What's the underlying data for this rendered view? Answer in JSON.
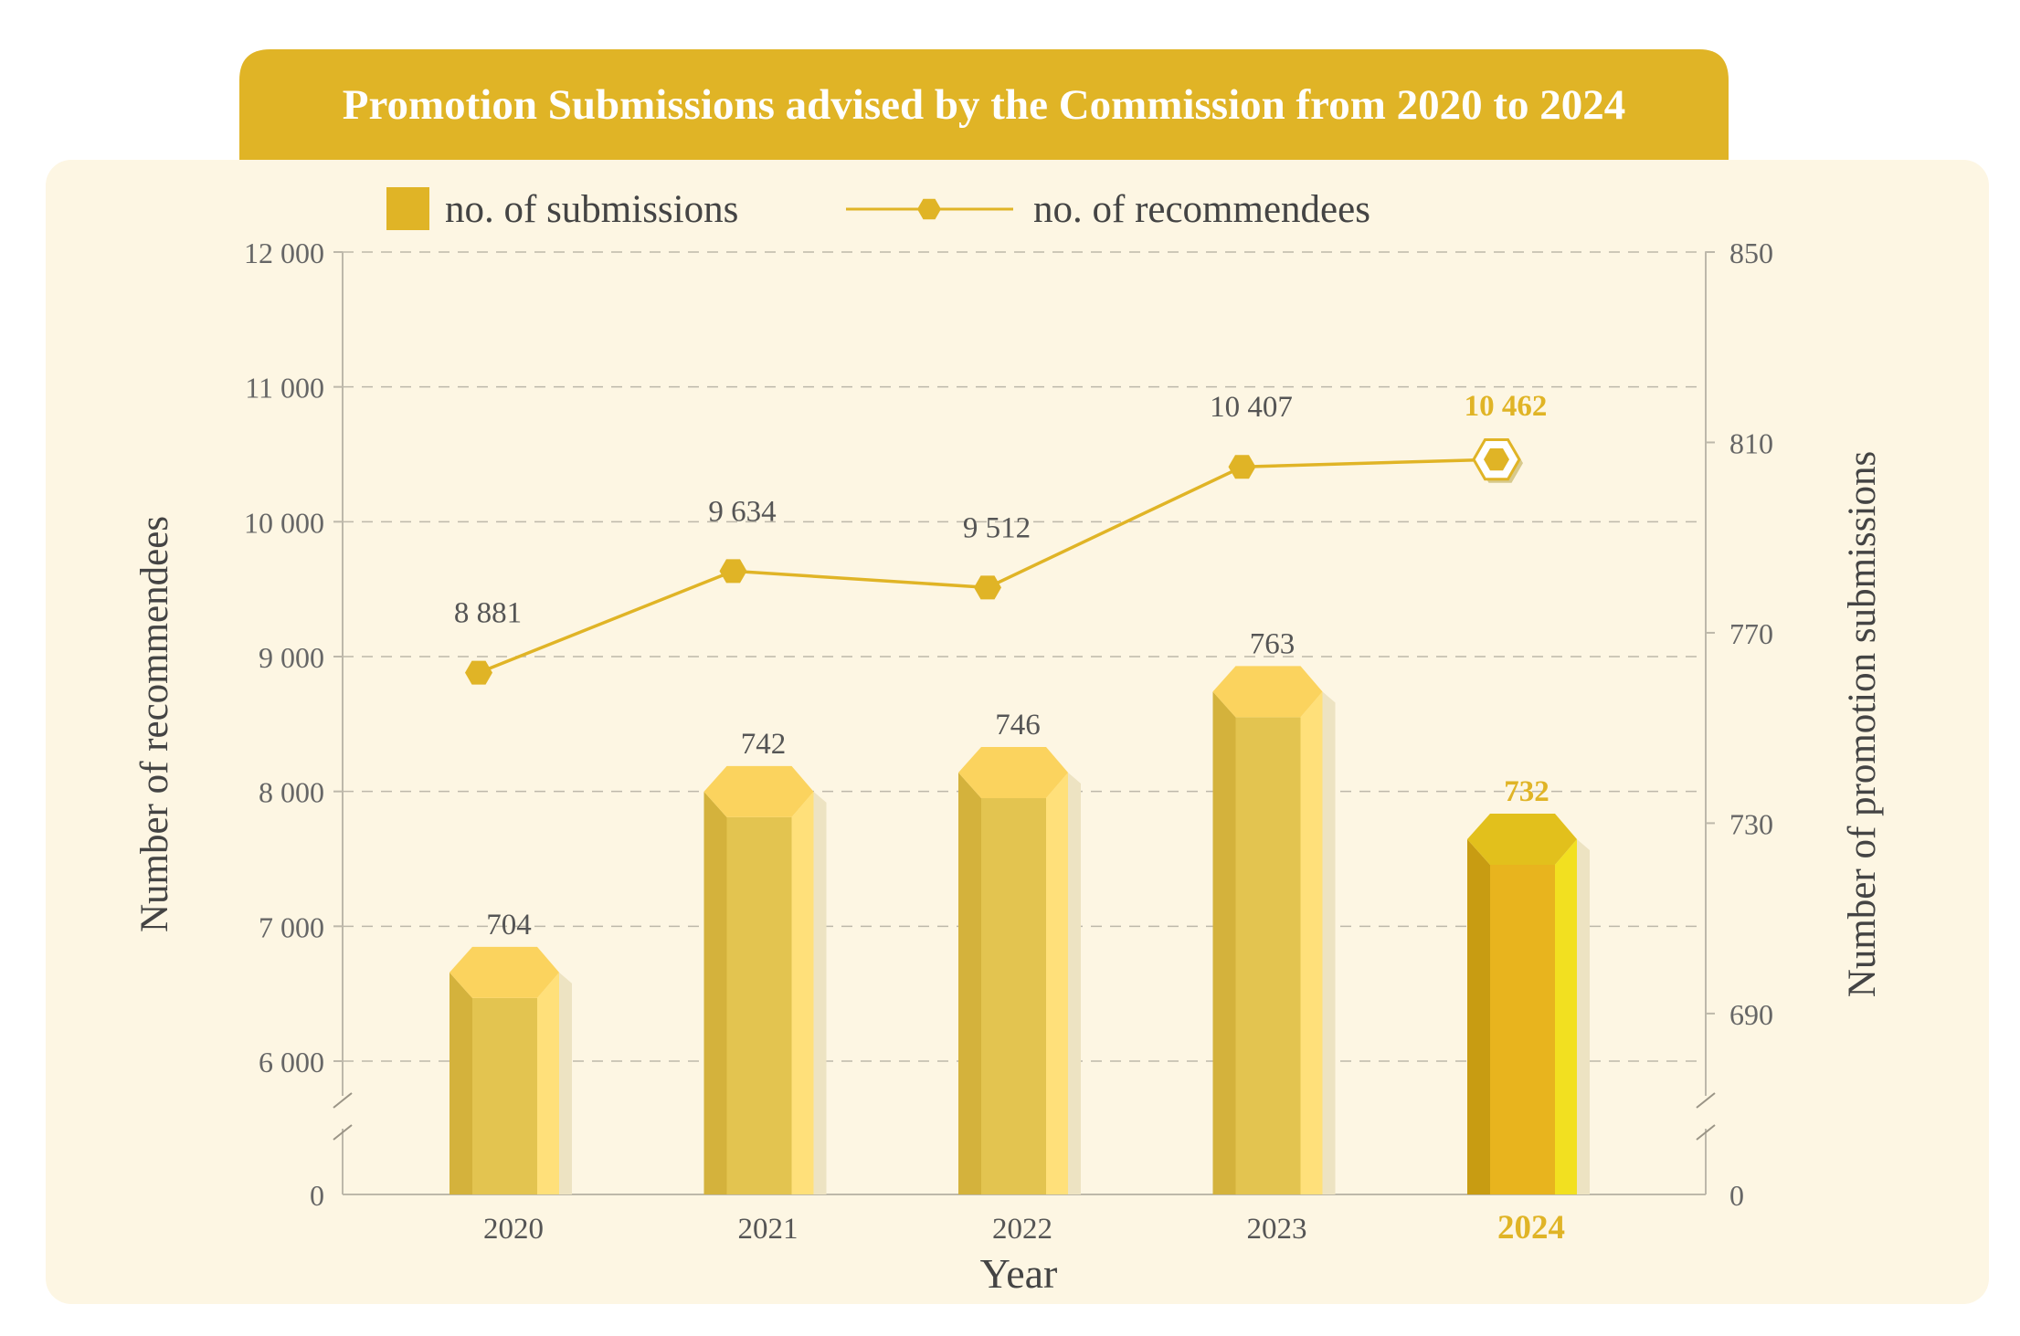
{
  "colors": {
    "title_bg": "#E0B426",
    "panel_bg": "#FDF6E3",
    "accent": "#E0B426",
    "bar_front": "#E3C450",
    "bar_left": "#D4B23C",
    "bar_right": "#FFE07A",
    "bar_top": "#FBD35E",
    "highlight_front": "#E8B41E",
    "highlight_left": "#C89C12",
    "highlight_right": "#F2E020",
    "highlight_top": "#E2C01C",
    "text": "#555555",
    "grid": "#BDB8AA"
  },
  "chart_data": {
    "type": "bar",
    "title": "Promotion Submissions advised by the Commission from 2020 to 2024",
    "categories": [
      "2020",
      "2021",
      "2022",
      "2023",
      "2024"
    ],
    "highlight_category": "2024",
    "xlabel": "Year",
    "ylabel_left": "Number of recommendees",
    "ylabel_right": "Number of promotion submissions",
    "left_axis": {
      "ticks": [
        "12 000",
        "11 000",
        "10 000",
        "9 000",
        "8 000",
        "7 000",
        "6 000",
        "0"
      ],
      "range": [
        6000,
        12000
      ],
      "broken": true
    },
    "right_axis": {
      "ticks": [
        "850",
        "810",
        "770",
        "730",
        "690",
        "0"
      ],
      "range": [
        680,
        850
      ],
      "broken": true
    },
    "grid": true,
    "legend": {
      "position": "top",
      "bar_label": "no. of submissions",
      "line_label": "no. of recommendees"
    },
    "series": [
      {
        "name": "no. of submissions",
        "type": "bar",
        "axis": "right",
        "values": [
          704,
          742,
          746,
          763,
          732
        ],
        "labels": [
          "704",
          "742",
          "746",
          "763",
          "732"
        ]
      },
      {
        "name": "no. of recommendees",
        "type": "line",
        "axis": "left",
        "values": [
          8881,
          9634,
          9512,
          10407,
          10462
        ],
        "labels": [
          "8 881",
          "9 634",
          "9 512",
          "10 407",
          "10 462"
        ]
      }
    ]
  }
}
